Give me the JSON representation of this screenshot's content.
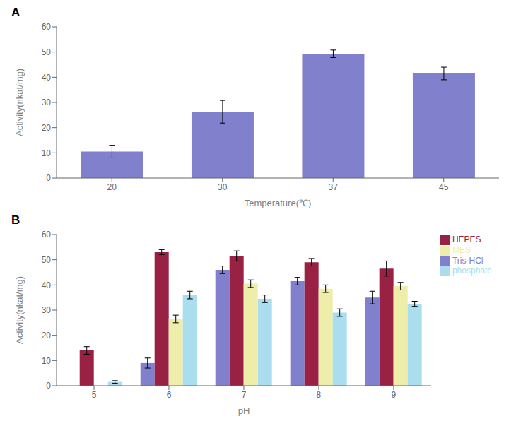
{
  "chart_data": [
    {
      "type": "bar",
      "title": "A",
      "categories": [
        "20",
        "30",
        "37",
        "45"
      ],
      "values": [
        10.5,
        26.3,
        49.3,
        41.5
      ],
      "errors": [
        2.5,
        4.5,
        1.5,
        2.5
      ],
      "color": "#8080cc",
      "xlabel": "Temperature(℃)",
      "ylabel": "Activity(nkat/mg)",
      "ylim": [
        0,
        60
      ],
      "yticks": [
        0,
        10,
        20,
        30,
        40,
        50,
        60
      ],
      "grid": false
    },
    {
      "type": "bar",
      "title": "B",
      "categories": [
        "5",
        "6",
        "7",
        "8",
        "9"
      ],
      "series": [
        {
          "name": "Tris-HCl",
          "color": "#8080cc",
          "values": [
            null,
            9.0,
            46.0,
            41.5,
            35.0
          ],
          "errors": [
            null,
            2.0,
            1.5,
            1.5,
            2.5
          ]
        },
        {
          "name": "HEPES",
          "color": "#992244",
          "values": [
            14.0,
            53.0,
            51.5,
            49.0,
            46.5
          ],
          "errors": [
            1.5,
            1.0,
            2.0,
            1.5,
            3.0
          ]
        },
        {
          "name": "MES",
          "color": "#eeeeaa",
          "values": [
            null,
            26.5,
            40.5,
            38.5,
            39.5
          ],
          "errors": [
            null,
            1.5,
            1.5,
            1.5,
            1.5
          ]
        },
        {
          "name": "phosphate",
          "color": "#aaddee",
          "values": [
            1.5,
            36.0,
            34.5,
            29.0,
            32.5
          ],
          "errors": [
            0.5,
            1.5,
            1.5,
            1.5,
            1.0
          ]
        }
      ],
      "xlabel": "pH",
      "ylabel": "Activity(nkat/mg)",
      "ylim": [
        0,
        60
      ],
      "yticks": [
        0,
        10,
        20,
        30,
        40,
        50,
        60
      ],
      "legend": "right",
      "grid": false
    }
  ]
}
